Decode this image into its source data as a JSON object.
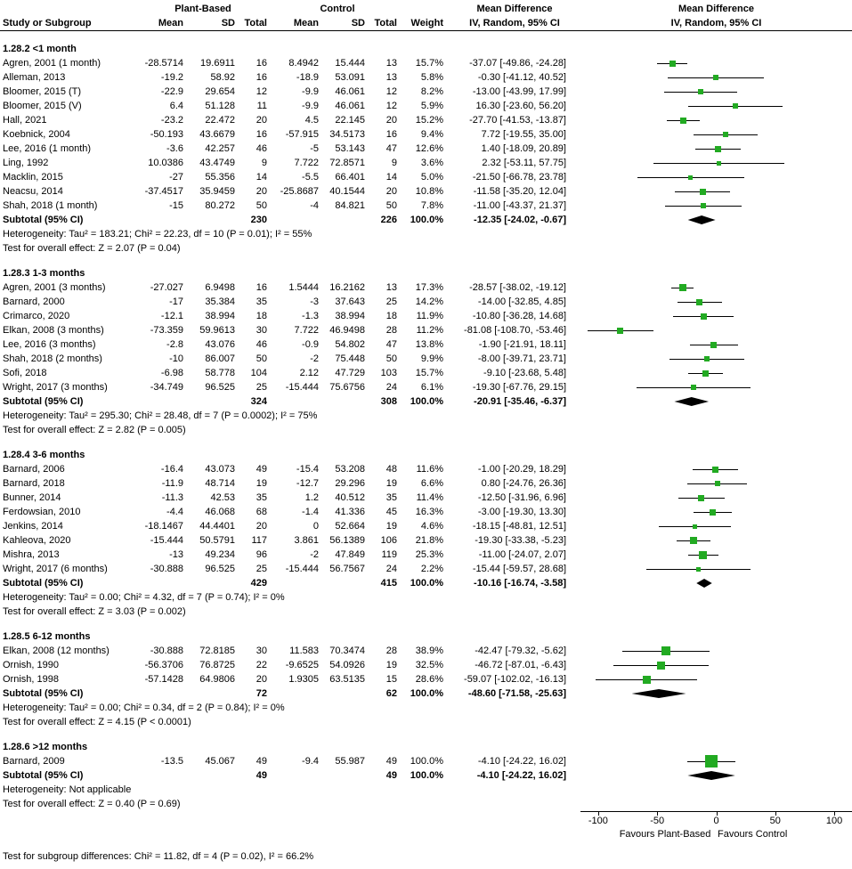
{
  "header": {
    "study_col": "Study or Subgroup",
    "group1": "Plant-Based",
    "group2": "Control",
    "mean": "Mean",
    "sd": "SD",
    "total": "Total",
    "weight": "Weight",
    "md_title": "Mean Difference",
    "md_subtitle": "IV, Random, 95% CI"
  },
  "footer": {
    "subgroup_test": "Test for subgroup differences: Chi² = 11.82, df = 4 (P = 0.02), I² = 66.2%"
  },
  "colors": {
    "square": "#22aa22",
    "diamond": "#000000",
    "ci_line": "#000000",
    "axis": "#000000",
    "text": "#000000",
    "background": "#ffffff"
  },
  "chart_data": {
    "type": "scatter",
    "subtype": "forest-plot-meta-analysis",
    "effect_measure": "Mean Difference",
    "method": "IV, Random, 95% CI",
    "x_axis": {
      "min": -115,
      "max": 115,
      "ticks": [
        -100,
        -50,
        0,
        50,
        100
      ],
      "favours_left": "Favours Plant-Based",
      "favours_right": "Favours Control"
    },
    "subgroups": [
      {
        "title": "1.28.2 <1 month",
        "studies": [
          {
            "name": "Agren, 2001 (1 month)",
            "m1": "-28.5714",
            "sd1": "19.6911",
            "t1": "16",
            "m2": "8.4942",
            "sd2": "15.444",
            "t2": "13",
            "weight": "15.7%",
            "md": "-37.07 [-49.86, -24.28]",
            "est": -37.07,
            "lo": -49.86,
            "hi": -24.28,
            "w": 15.7
          },
          {
            "name": "Alleman, 2013",
            "m1": "-19.2",
            "sd1": "58.92",
            "t1": "16",
            "m2": "-18.9",
            "sd2": "53.091",
            "t2": "13",
            "weight": "5.8%",
            "md": "-0.30 [-41.12, 40.52]",
            "est": -0.3,
            "lo": -41.12,
            "hi": 40.52,
            "w": 5.8
          },
          {
            "name": "Bloomer, 2015 (T)",
            "m1": "-22.9",
            "sd1": "29.654",
            "t1": "12",
            "m2": "-9.9",
            "sd2": "46.061",
            "t2": "12",
            "weight": "8.2%",
            "md": "-13.00 [-43.99, 17.99]",
            "est": -13.0,
            "lo": -43.99,
            "hi": 17.99,
            "w": 8.2
          },
          {
            "name": "Bloomer, 2015 (V)",
            "m1": "6.4",
            "sd1": "51.128",
            "t1": "11",
            "m2": "-9.9",
            "sd2": "46.061",
            "t2": "12",
            "weight": "5.9%",
            "md": "16.30 [-23.60, 56.20]",
            "est": 16.3,
            "lo": -23.6,
            "hi": 56.2,
            "w": 5.9
          },
          {
            "name": "Hall, 2021",
            "m1": "-23.2",
            "sd1": "22.472",
            "t1": "20",
            "m2": "4.5",
            "sd2": "22.145",
            "t2": "20",
            "weight": "15.2%",
            "md": "-27.70 [-41.53, -13.87]",
            "est": -27.7,
            "lo": -41.53,
            "hi": -13.87,
            "w": 15.2
          },
          {
            "name": "Koebnick, 2004",
            "m1": "-50.193",
            "sd1": "43.6679",
            "t1": "16",
            "m2": "-57.915",
            "sd2": "34.5173",
            "t2": "16",
            "weight": "9.4%",
            "md": "7.72 [-19.55, 35.00]",
            "est": 7.72,
            "lo": -19.55,
            "hi": 35.0,
            "w": 9.4
          },
          {
            "name": "Lee, 2016 (1 month)",
            "m1": "-3.6",
            "sd1": "42.257",
            "t1": "46",
            "m2": "-5",
            "sd2": "53.143",
            "t2": "47",
            "weight": "12.6%",
            "md": "1.40 [-18.09, 20.89]",
            "est": 1.4,
            "lo": -18.09,
            "hi": 20.89,
            "w": 12.6
          },
          {
            "name": "Ling, 1992",
            "m1": "10.0386",
            "sd1": "43.4749",
            "t1": "9",
            "m2": "7.722",
            "sd2": "72.8571",
            "t2": "9",
            "weight": "3.6%",
            "md": "2.32 [-53.11, 57.75]",
            "est": 2.32,
            "lo": -53.11,
            "hi": 57.75,
            "w": 3.6
          },
          {
            "name": "Macklin, 2015",
            "m1": "-27",
            "sd1": "55.356",
            "t1": "14",
            "m2": "-5.5",
            "sd2": "66.401",
            "t2": "14",
            "weight": "5.0%",
            "md": "-21.50 [-66.78, 23.78]",
            "est": -21.5,
            "lo": -66.78,
            "hi": 23.78,
            "w": 5.0
          },
          {
            "name": "Neacsu, 2014",
            "m1": "-37.4517",
            "sd1": "35.9459",
            "t1": "20",
            "m2": "-25.8687",
            "sd2": "40.1544",
            "t2": "20",
            "weight": "10.8%",
            "md": "-11.58 [-35.20, 12.04]",
            "est": -11.58,
            "lo": -35.2,
            "hi": 12.04,
            "w": 10.8
          },
          {
            "name": "Shah, 2018 (1 month)",
            "m1": "-15",
            "sd1": "80.272",
            "t1": "50",
            "m2": "-4",
            "sd2": "84.821",
            "t2": "50",
            "weight": "7.8%",
            "md": "-11.00 [-43.37, 21.37]",
            "est": -11.0,
            "lo": -43.37,
            "hi": 21.37,
            "w": 7.8
          }
        ],
        "subtotal": {
          "label": "Subtotal (95% CI)",
          "t1": "230",
          "t2": "226",
          "weight": "100.0%",
          "md": "-12.35 [-24.02, -0.67]",
          "est": -12.35,
          "lo": -24.02,
          "hi": -0.67
        },
        "heterogeneity": "Heterogeneity: Tau² = 183.21; Chi² = 22.23, df = 10 (P = 0.01); I² = 55%",
        "test": "Test for overall effect: Z = 2.07 (P = 0.04)"
      },
      {
        "title": "1.28.3 1-3 months",
        "studies": [
          {
            "name": "Agren, 2001 (3 months)",
            "m1": "-27.027",
            "sd1": "6.9498",
            "t1": "16",
            "m2": "1.5444",
            "sd2": "16.2162",
            "t2": "13",
            "weight": "17.3%",
            "md": "-28.57 [-38.02, -19.12]",
            "est": -28.57,
            "lo": -38.02,
            "hi": -19.12,
            "w": 17.3
          },
          {
            "name": "Barnard, 2000",
            "m1": "-17",
            "sd1": "35.384",
            "t1": "35",
            "m2": "-3",
            "sd2": "37.643",
            "t2": "25",
            "weight": "14.2%",
            "md": "-14.00 [-32.85, 4.85]",
            "est": -14.0,
            "lo": -32.85,
            "hi": 4.85,
            "w": 14.2
          },
          {
            "name": "Crimarco, 2020",
            "m1": "-12.1",
            "sd1": "38.994",
            "t1": "18",
            "m2": "-1.3",
            "sd2": "38.994",
            "t2": "18",
            "weight": "11.9%",
            "md": "-10.80 [-36.28, 14.68]",
            "est": -10.8,
            "lo": -36.28,
            "hi": 14.68,
            "w": 11.9
          },
          {
            "name": "Elkan, 2008 (3 months)",
            "m1": "-73.359",
            "sd1": "59.9613",
            "t1": "30",
            "m2": "7.722",
            "sd2": "46.9498",
            "t2": "28",
            "weight": "11.2%",
            "md": "-81.08 [-108.70, -53.46]",
            "est": -81.08,
            "lo": -108.7,
            "hi": -53.46,
            "w": 11.2
          },
          {
            "name": "Lee, 2016 (3 months)",
            "m1": "-2.8",
            "sd1": "43.076",
            "t1": "46",
            "m2": "-0.9",
            "sd2": "54.802",
            "t2": "47",
            "weight": "13.8%",
            "md": "-1.90 [-21.91, 18.11]",
            "est": -1.9,
            "lo": -21.91,
            "hi": 18.11,
            "w": 13.8
          },
          {
            "name": "Shah, 2018 (2 months)",
            "m1": "-10",
            "sd1": "86.007",
            "t1": "50",
            "m2": "-2",
            "sd2": "75.448",
            "t2": "50",
            "weight": "9.9%",
            "md": "-8.00 [-39.71, 23.71]",
            "est": -8.0,
            "lo": -39.71,
            "hi": 23.71,
            "w": 9.9
          },
          {
            "name": "Sofi, 2018",
            "m1": "-6.98",
            "sd1": "58.778",
            "t1": "104",
            "m2": "2.12",
            "sd2": "47.729",
            "t2": "103",
            "weight": "15.7%",
            "md": "-9.10 [-23.68, 5.48]",
            "est": -9.1,
            "lo": -23.68,
            "hi": 5.48,
            "w": 15.7
          },
          {
            "name": "Wright, 2017 (3 months)",
            "m1": "-34.749",
            "sd1": "96.525",
            "t1": "25",
            "m2": "-15.444",
            "sd2": "75.6756",
            "t2": "24",
            "weight": "6.1%",
            "md": "-19.30 [-67.76, 29.15]",
            "est": -19.3,
            "lo": -67.76,
            "hi": 29.15,
            "w": 6.1
          }
        ],
        "subtotal": {
          "label": "Subtotal (95% CI)",
          "t1": "324",
          "t2": "308",
          "weight": "100.0%",
          "md": "-20.91 [-35.46, -6.37]",
          "est": -20.91,
          "lo": -35.46,
          "hi": -6.37
        },
        "heterogeneity": "Heterogeneity: Tau² = 295.30; Chi² = 28.48, df = 7 (P = 0.0002); I² = 75%",
        "test": "Test for overall effect: Z = 2.82 (P = 0.005)"
      },
      {
        "title": "1.28.4 3-6 months",
        "studies": [
          {
            "name": "Barnard, 2006",
            "m1": "-16.4",
            "sd1": "43.073",
            "t1": "49",
            "m2": "-15.4",
            "sd2": "53.208",
            "t2": "48",
            "weight": "11.6%",
            "md": "-1.00 [-20.29, 18.29]",
            "est": -1.0,
            "lo": -20.29,
            "hi": 18.29,
            "w": 11.6
          },
          {
            "name": "Barnard, 2018",
            "m1": "-11.9",
            "sd1": "48.714",
            "t1": "19",
            "m2": "-12.7",
            "sd2": "29.296",
            "t2": "19",
            "weight": "6.6%",
            "md": "0.80 [-24.76, 26.36]",
            "est": 0.8,
            "lo": -24.76,
            "hi": 26.36,
            "w": 6.6
          },
          {
            "name": "Bunner, 2014",
            "m1": "-11.3",
            "sd1": "42.53",
            "t1": "35",
            "m2": "1.2",
            "sd2": "40.512",
            "t2": "35",
            "weight": "11.4%",
            "md": "-12.50 [-31.96, 6.96]",
            "est": -12.5,
            "lo": -31.96,
            "hi": 6.96,
            "w": 11.4
          },
          {
            "name": "Ferdowsian, 2010",
            "m1": "-4.4",
            "sd1": "46.068",
            "t1": "68",
            "m2": "-1.4",
            "sd2": "41.336",
            "t2": "45",
            "weight": "16.3%",
            "md": "-3.00 [-19.30, 13.30]",
            "est": -3.0,
            "lo": -19.3,
            "hi": 13.3,
            "w": 16.3
          },
          {
            "name": "Jenkins, 2014",
            "m1": "-18.1467",
            "sd1": "44.4401",
            "t1": "20",
            "m2": "0",
            "sd2": "52.664",
            "t2": "19",
            "weight": "4.6%",
            "md": "-18.15 [-48.81, 12.51]",
            "est": -18.15,
            "lo": -48.81,
            "hi": 12.51,
            "w": 4.6
          },
          {
            "name": "Kahleova, 2020",
            "m1": "-15.444",
            "sd1": "50.5791",
            "t1": "117",
            "m2": "3.861",
            "sd2": "56.1389",
            "t2": "106",
            "weight": "21.8%",
            "md": "-19.30 [-33.38, -5.23]",
            "est": -19.3,
            "lo": -33.38,
            "hi": -5.23,
            "w": 21.8
          },
          {
            "name": "Mishra, 2013",
            "m1": "-13",
            "sd1": "49.234",
            "t1": "96",
            "m2": "-2",
            "sd2": "47.849",
            "t2": "119",
            "weight": "25.3%",
            "md": "-11.00 [-24.07, 2.07]",
            "est": -11.0,
            "lo": -24.07,
            "hi": 2.07,
            "w": 25.3
          },
          {
            "name": "Wright, 2017 (6 months)",
            "m1": "-30.888",
            "sd1": "96.525",
            "t1": "25",
            "m2": "-15.444",
            "sd2": "56.7567",
            "t2": "24",
            "weight": "2.2%",
            "md": "-15.44 [-59.57, 28.68]",
            "est": -15.44,
            "lo": -59.57,
            "hi": 28.68,
            "w": 2.2
          }
        ],
        "subtotal": {
          "label": "Subtotal (95% CI)",
          "t1": "429",
          "t2": "415",
          "weight": "100.0%",
          "md": "-10.16 [-16.74, -3.58]",
          "est": -10.16,
          "lo": -16.74,
          "hi": -3.58
        },
        "heterogeneity": "Heterogeneity: Tau² = 0.00; Chi² = 4.32, df = 7 (P = 0.74); I² = 0%",
        "test": "Test for overall effect: Z = 3.03 (P = 0.002)"
      },
      {
        "title": "1.28.5 6-12 months",
        "studies": [
          {
            "name": "Elkan, 2008 (12 months)",
            "m1": "-30.888",
            "sd1": "72.8185",
            "t1": "30",
            "m2": "11.583",
            "sd2": "70.3474",
            "t2": "28",
            "weight": "38.9%",
            "md": "-42.47 [-79.32, -5.62]",
            "est": -42.47,
            "lo": -79.32,
            "hi": -5.62,
            "w": 38.9
          },
          {
            "name": "Ornish, 1990",
            "m1": "-56.3706",
            "sd1": "76.8725",
            "t1": "22",
            "m2": "-9.6525",
            "sd2": "54.0926",
            "t2": "19",
            "weight": "32.5%",
            "md": "-46.72 [-87.01, -6.43]",
            "est": -46.72,
            "lo": -87.01,
            "hi": -6.43,
            "w": 32.5
          },
          {
            "name": "Ornish, 1998",
            "m1": "-57.1428",
            "sd1": "64.9806",
            "t1": "20",
            "m2": "1.9305",
            "sd2": "63.5135",
            "t2": "15",
            "weight": "28.6%",
            "md": "-59.07 [-102.02, -16.13]",
            "est": -59.07,
            "lo": -102.02,
            "hi": -16.13,
            "w": 28.6
          }
        ],
        "subtotal": {
          "label": "Subtotal (95% CI)",
          "t1": "72",
          "t2": "62",
          "weight": "100.0%",
          "md": "-48.60 [-71.58, -25.63]",
          "est": -48.6,
          "lo": -71.58,
          "hi": -25.63
        },
        "heterogeneity": "Heterogeneity: Tau² = 0.00; Chi² = 0.34, df = 2 (P = 0.84); I² = 0%",
        "test": "Test for overall effect: Z = 4.15 (P < 0.0001)"
      },
      {
        "title": "1.28.6 >12 months",
        "studies": [
          {
            "name": "Barnard, 2009",
            "m1": "-13.5",
            "sd1": "45.067",
            "t1": "49",
            "m2": "-9.4",
            "sd2": "55.987",
            "t2": "49",
            "weight": "100.0%",
            "md": "-4.10 [-24.22, 16.02]",
            "est": -4.1,
            "lo": -24.22,
            "hi": 16.02,
            "w": 100.0
          }
        ],
        "subtotal": {
          "label": "Subtotal (95% CI)",
          "t1": "49",
          "t2": "49",
          "weight": "100.0%",
          "md": "-4.10 [-24.22, 16.02]",
          "est": -4.1,
          "lo": -24.22,
          "hi": 16.02
        },
        "heterogeneity": "Heterogeneity: Not applicable",
        "test": "Test for overall effect: Z = 0.40 (P = 0.69)"
      }
    ]
  }
}
